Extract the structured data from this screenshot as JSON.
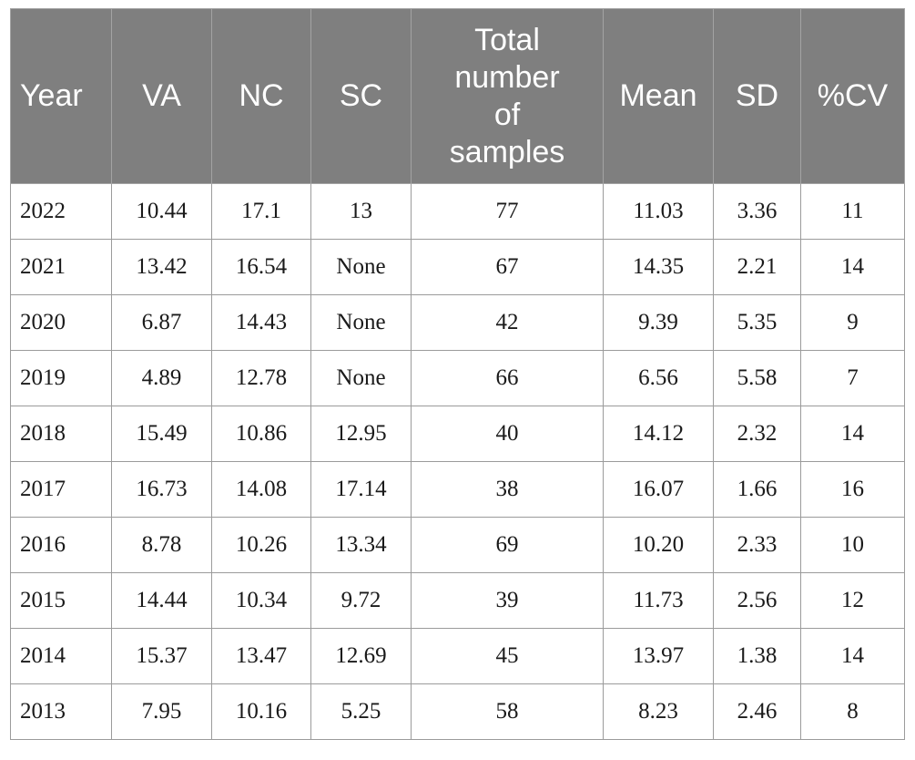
{
  "table": {
    "headers": [
      "Year",
      "VA",
      "NC",
      "SC",
      "Total number of samples",
      "Mean",
      "SD",
      "%CV"
    ],
    "rows": [
      [
        "2022",
        "10.44",
        "17.1",
        "13",
        "77",
        "11.03",
        "3.36",
        "11"
      ],
      [
        "2021",
        "13.42",
        "16.54",
        "None",
        "67",
        "14.35",
        "2.21",
        "14"
      ],
      [
        "2020",
        "6.87",
        "14.43",
        "None",
        "42",
        "9.39",
        "5.35",
        "9"
      ],
      [
        "2019",
        "4.89",
        "12.78",
        "None",
        "66",
        "6.56",
        "5.58",
        "7"
      ],
      [
        "2018",
        "15.49",
        "10.86",
        "12.95",
        "40",
        "14.12",
        "2.32",
        "14"
      ],
      [
        "2017",
        "16.73",
        "14.08",
        "17.14",
        "38",
        "16.07",
        "1.66",
        "16"
      ],
      [
        "2016",
        "8.78",
        "10.26",
        "13.34",
        "69",
        "10.20",
        "2.33",
        "10"
      ],
      [
        "2015",
        "14.44",
        "10.34",
        "9.72",
        "39",
        "11.73",
        "2.56",
        "12"
      ],
      [
        "2014",
        "15.37",
        "13.47",
        "12.69",
        "45",
        "13.97",
        "1.38",
        "14"
      ],
      [
        "2013",
        "7.95",
        "10.16",
        "5.25",
        "58",
        "8.23",
        "2.46",
        "8"
      ]
    ]
  },
  "colors": {
    "header_background": "#7f7f7f",
    "header_text": "#ffffff",
    "border": "#9b9b9b"
  }
}
